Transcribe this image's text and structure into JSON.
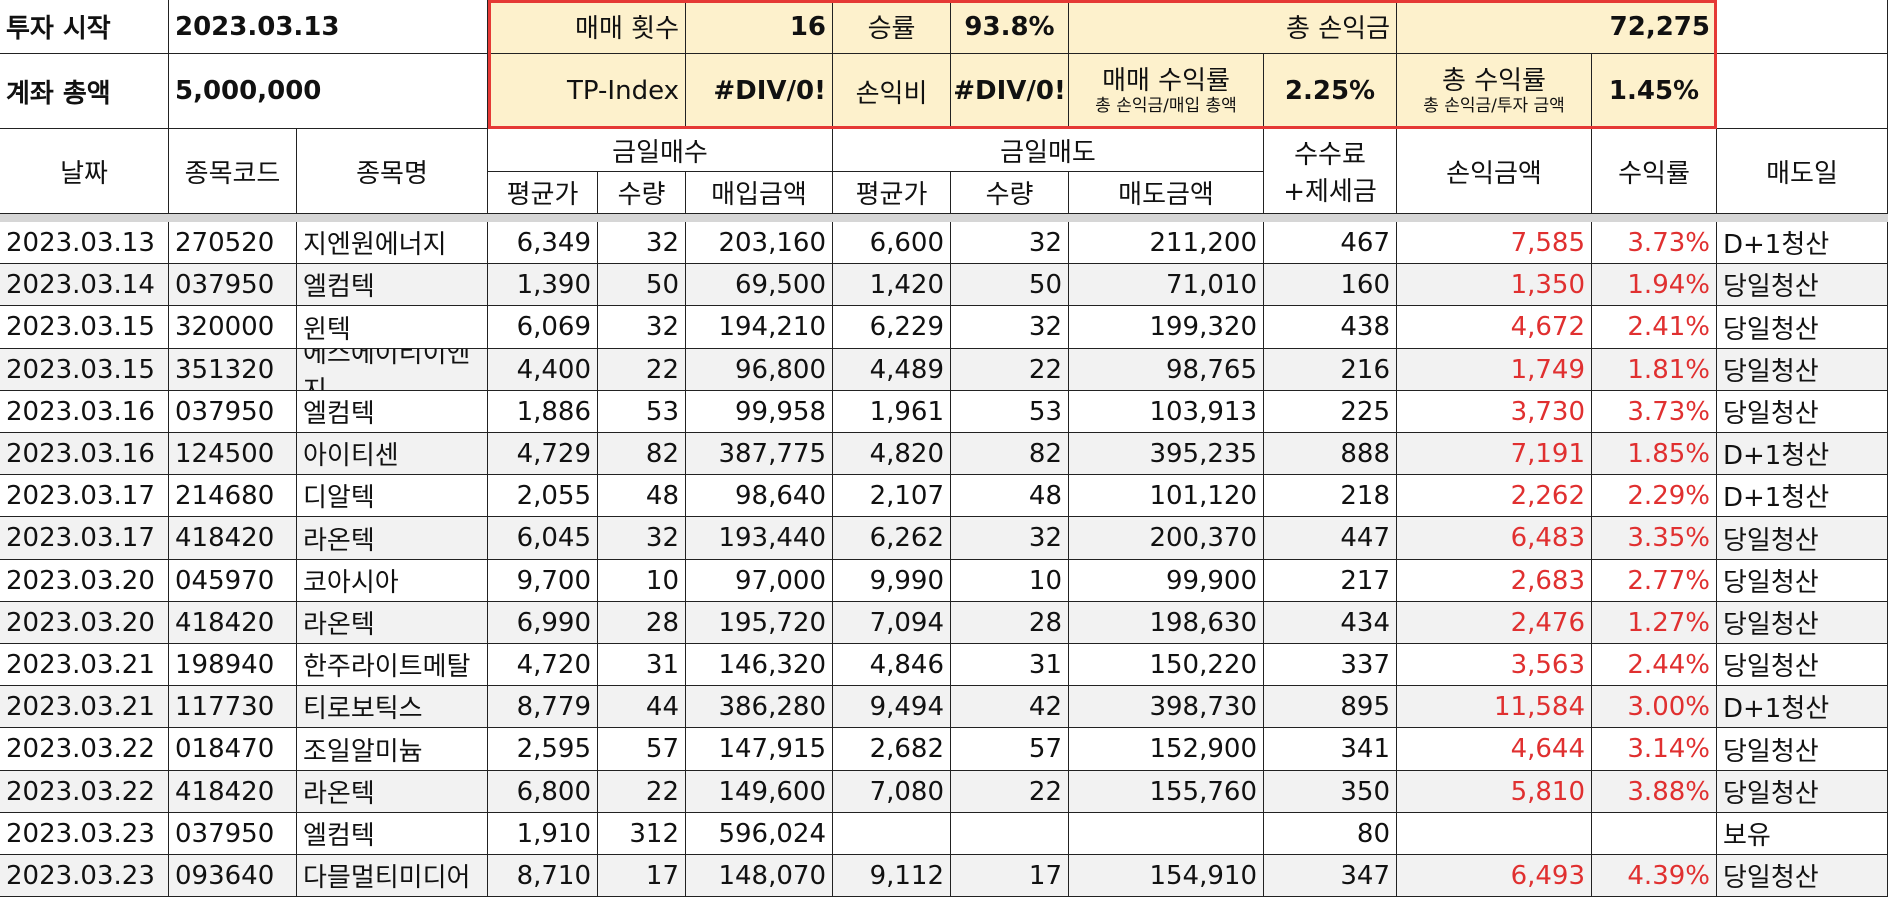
{
  "summary": {
    "start_label": "투자 시작",
    "start_date": "2023.03.13",
    "balance_label": "계좌 총액",
    "balance": "5,000,000",
    "trades_label": "매매 횟수",
    "trades": "16",
    "winrate_label": "승률",
    "winrate": "93.8%",
    "total_pl_label": "총 손익금",
    "total_pl": "72,275",
    "tp_label": "TP-Index",
    "tp": "#DIV/0!",
    "ratio_label": "손익비",
    "ratio": "#DIV/0!",
    "trade_return_label": "매매 수익률",
    "trade_return_note": "총 손익금/매입 총액",
    "trade_return": "2.25%",
    "total_return_label": "총 수익률",
    "total_return_note": "총 손익금/투자 금액",
    "total_return": "1.45%"
  },
  "header": {
    "date": "날짜",
    "code": "종목코드",
    "name": "종목명",
    "buy": "금일매수",
    "sell": "금일매도",
    "fee": "수수료\n+제세금",
    "pl": "손익금액",
    "rate": "수익률",
    "sell_day": "매도일",
    "buy_sub": [
      "평균가",
      "수량",
      "매입금액"
    ],
    "sell_sub": [
      "평균가",
      "수량",
      "매도금액"
    ]
  },
  "rows": [
    [
      "2023.03.13",
      "270520",
      "지엔원에너지",
      "6,349",
      "32",
      "203,160",
      "6,600",
      "32",
      "211,200",
      "467",
      "7,585",
      "3.73%",
      "D+1청산"
    ],
    [
      "2023.03.14",
      "037950",
      "엘컴텍",
      "1,390",
      "50",
      "69,500",
      "1,420",
      "50",
      "71,010",
      "160",
      "1,350",
      "1.94%",
      "당일청산"
    ],
    [
      "2023.03.15",
      "320000",
      "윈텍",
      "6,069",
      "32",
      "194,210",
      "6,229",
      "32",
      "199,320",
      "438",
      "4,672",
      "2.41%",
      "당일청산"
    ],
    [
      "2023.03.15",
      "351320",
      "에스에이티이엔지",
      "4,400",
      "22",
      "96,800",
      "4,489",
      "22",
      "98,765",
      "216",
      "1,749",
      "1.81%",
      "당일청산"
    ],
    [
      "2023.03.16",
      "037950",
      "엘컴텍",
      "1,886",
      "53",
      "99,958",
      "1,961",
      "53",
      "103,913",
      "225",
      "3,730",
      "3.73%",
      "당일청산"
    ],
    [
      "2023.03.16",
      "124500",
      "아이티센",
      "4,729",
      "82",
      "387,775",
      "4,820",
      "82",
      "395,235",
      "888",
      "7,191",
      "1.85%",
      "D+1청산"
    ],
    [
      "2023.03.17",
      "214680",
      "디알텍",
      "2,055",
      "48",
      "98,640",
      "2,107",
      "48",
      "101,120",
      "218",
      "2,262",
      "2.29%",
      "D+1청산"
    ],
    [
      "2023.03.17",
      "418420",
      "라온텍",
      "6,045",
      "32",
      "193,440",
      "6,262",
      "32",
      "200,370",
      "447",
      "6,483",
      "3.35%",
      "당일청산"
    ],
    [
      "2023.03.20",
      "045970",
      "코아시아",
      "9,700",
      "10",
      "97,000",
      "9,990",
      "10",
      "99,900",
      "217",
      "2,683",
      "2.77%",
      "당일청산"
    ],
    [
      "2023.03.20",
      "418420",
      "라온텍",
      "6,990",
      "28",
      "195,720",
      "7,094",
      "28",
      "198,630",
      "434",
      "2,476",
      "1.27%",
      "당일청산"
    ],
    [
      "2023.03.21",
      "198940",
      "한주라이트메탈",
      "4,720",
      "31",
      "146,320",
      "4,846",
      "31",
      "150,220",
      "337",
      "3,563",
      "2.44%",
      "당일청산"
    ],
    [
      "2023.03.21",
      "117730",
      "티로보틱스",
      "8,779",
      "44",
      "386,280",
      "9,494",
      "42",
      "398,730",
      "895",
      "11,584",
      "3.00%",
      "D+1청산"
    ],
    [
      "2023.03.22",
      "018470",
      "조일알미늄",
      "2,595",
      "57",
      "147,915",
      "2,682",
      "57",
      "152,900",
      "341",
      "4,644",
      "3.14%",
      "당일청산"
    ],
    [
      "2023.03.22",
      "418420",
      "라온텍",
      "6,800",
      "22",
      "149,600",
      "7,080",
      "22",
      "155,760",
      "350",
      "5,810",
      "3.88%",
      "당일청산"
    ],
    [
      "2023.03.23",
      "037950",
      "엘컴텍",
      "1,910",
      "312",
      "596,024",
      null,
      null,
      null,
      "80",
      null,
      null,
      "보유"
    ],
    [
      "2023.03.23",
      "093640",
      "다믈멀티미디어",
      "8,710",
      "17",
      "148,070",
      "9,112",
      "17",
      "154,910",
      "347",
      "6,493",
      "4.39%",
      "당일청산"
    ]
  ]
}
